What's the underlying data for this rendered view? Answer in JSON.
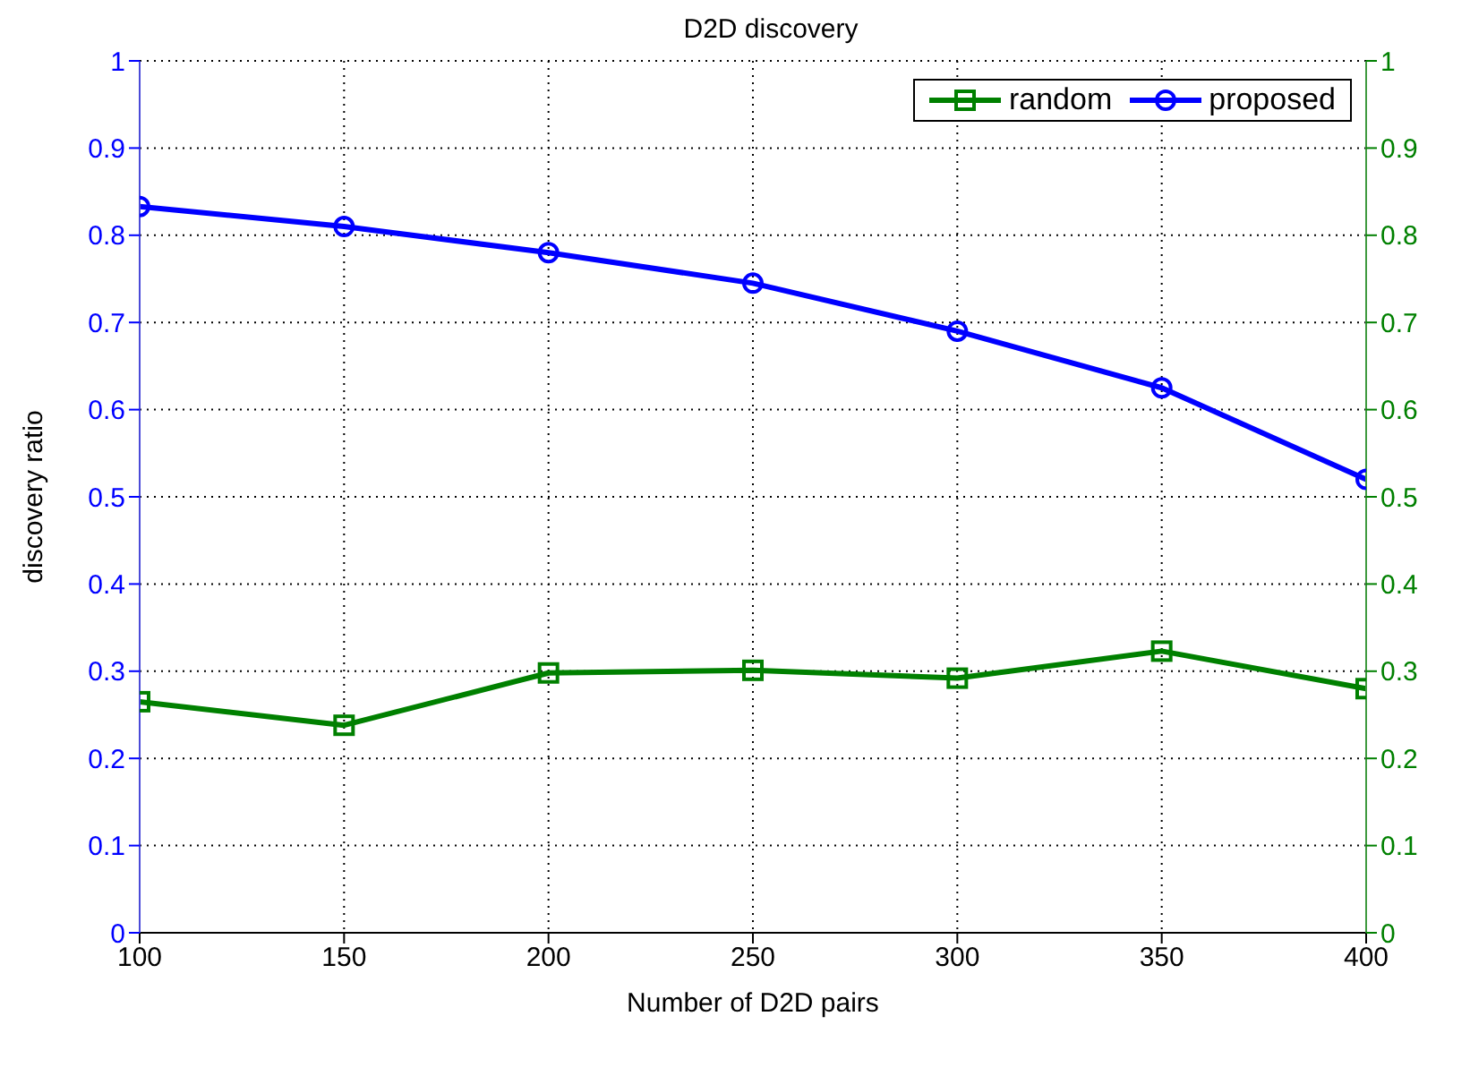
{
  "chart_data": {
    "type": "line",
    "title": "D2D discovery",
    "xlabel": "Number of D2D pairs",
    "ylabel": "discovery ratio",
    "x": [
      100,
      150,
      200,
      250,
      300,
      350,
      400
    ],
    "series": [
      {
        "name": "random",
        "color": "#008000",
        "marker": "square",
        "axis": "y2",
        "values": [
          0.265,
          0.238,
          0.298,
          0.301,
          0.292,
          0.323,
          0.28
        ]
      },
      {
        "name": "proposed",
        "color": "#0000ff",
        "marker": "circle",
        "values": [
          0.833,
          0.81,
          0.78,
          0.745,
          0.69,
          0.625,
          0.52
        ]
      }
    ],
    "xlim": [
      100,
      400
    ],
    "xticks": [
      100,
      150,
      200,
      250,
      300,
      350,
      400
    ],
    "ylim": [
      0,
      1
    ],
    "yticks": [
      0,
      0.1,
      0.2,
      0.3,
      0.4,
      0.5,
      0.6,
      0.7,
      0.8,
      0.9,
      1
    ],
    "y2lim": [
      0,
      1
    ],
    "y2ticks": [
      0,
      0.1,
      0.2,
      0.3,
      0.4,
      0.5,
      0.6,
      0.7,
      0.8,
      0.9,
      1
    ],
    "grid": true,
    "legend": "top right",
    "line_style": "solid"
  }
}
